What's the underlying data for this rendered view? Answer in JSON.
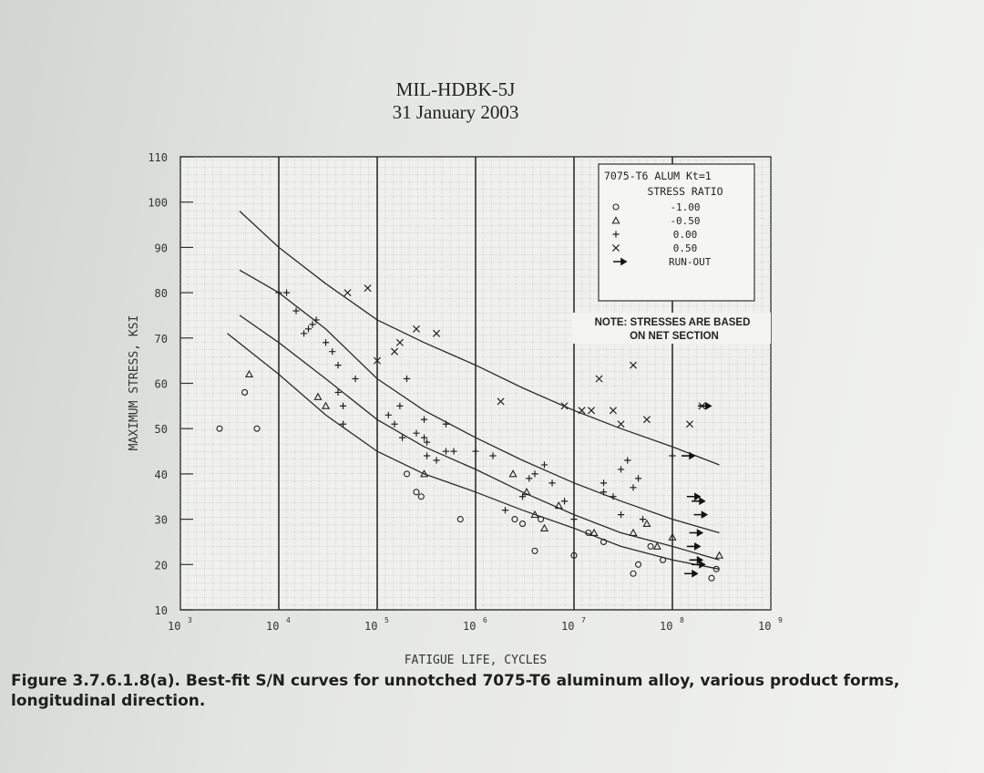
{
  "header": {
    "line1": "MIL-HDBK-5J",
    "line2": "31 January 2003"
  },
  "caption": {
    "text": "Figure 3.7.6.1.8(a). Best-fit S/N curves for unnotched 7075-T6 aluminum alloy, various product forms, longitudinal direction."
  },
  "chart_data": {
    "type": "scatter",
    "title": "",
    "xlabel": "FATIGUE LIFE, CYCLES",
    "ylabel": "MAXIMUM STRESS, KSI",
    "x_scale": "log",
    "xlim": [
      1000,
      1000000000
    ],
    "ylim": [
      10,
      110
    ],
    "x_ticks": [
      {
        "value": 1000,
        "base": "10",
        "exp": "3"
      },
      {
        "value": 10000,
        "base": "10",
        "exp": "4"
      },
      {
        "value": 100000,
        "base": "10",
        "exp": "5"
      },
      {
        "value": 1000000,
        "base": "10",
        "exp": "6"
      },
      {
        "value": 10000000,
        "base": "10",
        "exp": "7"
      },
      {
        "value": 100000000,
        "base": "10",
        "exp": "8"
      },
      {
        "value": 1000000000,
        "base": "10",
        "exp": "9"
      }
    ],
    "y_ticks": [
      {
        "value": 10,
        "label": "10"
      },
      {
        "value": 20,
        "label": "20"
      },
      {
        "value": 30,
        "label": "30"
      },
      {
        "value": 40,
        "label": "40"
      },
      {
        "value": 50,
        "label": "50"
      },
      {
        "value": 60,
        "label": "60"
      },
      {
        "value": 70,
        "label": "70"
      },
      {
        "value": 80,
        "label": "80"
      },
      {
        "value": 90,
        "label": "90"
      },
      {
        "value": 100,
        "label": "100"
      },
      {
        "value": 110,
        "label": "110"
      }
    ],
    "grid": true,
    "legend": {
      "placement": "top-right",
      "title_line1": "7075-T6 ALUM Kt=1",
      "title_line2": "STRESS RATIO",
      "entries": [
        {
          "marker": "circle",
          "label": "-1.00"
        },
        {
          "marker": "triangle",
          "label": "-0.50"
        },
        {
          "marker": "plus",
          "label": "0.00"
        },
        {
          "marker": "x",
          "label": "0.50"
        },
        {
          "marker": "arrow",
          "label": "RUN-OUT"
        }
      ]
    },
    "note": {
      "line1": "NOTE: STRESSES ARE BASED",
      "line2": "ON NET SECTION"
    },
    "curves": [
      {
        "name": "0.50",
        "x": [
          4000,
          10000,
          30000,
          100000,
          300000,
          1000000,
          3000000,
          10000000,
          30000000,
          100000000,
          300000000
        ],
        "y": [
          98,
          90,
          82,
          74,
          69,
          64,
          59,
          54,
          50,
          46,
          42
        ]
      },
      {
        "name": "0.00",
        "x": [
          4000,
          10000,
          30000,
          100000,
          300000,
          1000000,
          3000000,
          10000000,
          30000000,
          100000000,
          300000000
        ],
        "y": [
          85,
          80,
          72,
          61,
          54,
          48,
          43,
          38,
          34,
          30,
          27
        ]
      },
      {
        "name": "-0.50",
        "x": [
          4000,
          10000,
          30000,
          100000,
          300000,
          1000000,
          3000000,
          10000000,
          30000000,
          100000000,
          300000000
        ],
        "y": [
          75,
          69,
          61,
          52,
          46,
          41,
          36,
          31,
          27,
          24,
          21
        ]
      },
      {
        "name": "-1.00",
        "x": [
          3000,
          10000,
          30000,
          100000,
          300000,
          1000000,
          3000000,
          10000000,
          30000000,
          100000000,
          300000000
        ],
        "y": [
          71,
          62,
          53,
          45,
          40,
          36,
          32,
          28,
          24,
          21,
          19
        ]
      }
    ],
    "series": [
      {
        "name": "-1.00",
        "marker": "circle",
        "points": [
          [
            2500,
            50
          ],
          [
            4500,
            58
          ],
          [
            6000,
            50
          ],
          [
            200000,
            40
          ],
          [
            250000,
            36
          ],
          [
            280000,
            35
          ],
          [
            700000,
            30
          ],
          [
            2500000,
            30
          ],
          [
            3000000,
            29
          ],
          [
            4000000,
            23
          ],
          [
            4600000,
            30
          ],
          [
            10000000,
            22
          ],
          [
            14000000,
            27
          ],
          [
            20000000,
            25
          ],
          [
            40000000,
            18
          ],
          [
            45000000,
            20
          ],
          [
            60000000,
            24
          ],
          [
            80000000,
            21
          ],
          [
            250000000,
            17
          ],
          [
            280000000,
            19
          ]
        ]
      },
      {
        "name": "-0.50",
        "marker": "triangle",
        "points": [
          [
            5000,
            62
          ],
          [
            25000,
            57
          ],
          [
            30000,
            55
          ],
          [
            300000,
            40
          ],
          [
            2400000,
            40
          ],
          [
            3300000,
            36
          ],
          [
            4000000,
            31
          ],
          [
            5000000,
            28
          ],
          [
            7000000,
            33
          ],
          [
            16000000,
            27
          ],
          [
            40000000,
            27
          ],
          [
            55000000,
            29
          ],
          [
            70000000,
            24
          ],
          [
            100000000,
            26
          ],
          [
            300000000,
            22
          ]
        ]
      },
      {
        "name": "0.00",
        "marker": "plus",
        "points": [
          [
            10000,
            80
          ],
          [
            12000,
            80
          ],
          [
            15000,
            76
          ],
          [
            18000,
            71
          ],
          [
            20000,
            72
          ],
          [
            22000,
            73
          ],
          [
            24000,
            74
          ],
          [
            30000,
            69
          ],
          [
            35000,
            67
          ],
          [
            40000,
            64
          ],
          [
            40000,
            58
          ],
          [
            45000,
            55
          ],
          [
            45000,
            51
          ],
          [
            60000,
            61
          ],
          [
            130000,
            53
          ],
          [
            150000,
            51
          ],
          [
            170000,
            55
          ],
          [
            180000,
            48
          ],
          [
            200000,
            61
          ],
          [
            250000,
            49
          ],
          [
            300000,
            48
          ],
          [
            300000,
            52
          ],
          [
            320000,
            47
          ],
          [
            320000,
            44
          ],
          [
            400000,
            43
          ],
          [
            500000,
            45
          ],
          [
            500000,
            51
          ],
          [
            600000,
            45
          ],
          [
            1000000,
            45
          ],
          [
            1500000,
            44
          ],
          [
            2000000,
            32
          ],
          [
            3000000,
            35
          ],
          [
            3500000,
            39
          ],
          [
            4000000,
            40
          ],
          [
            5000000,
            42
          ],
          [
            6000000,
            38
          ],
          [
            8000000,
            34
          ],
          [
            10000000,
            30
          ],
          [
            20000000,
            38
          ],
          [
            20000000,
            36
          ],
          [
            25000000,
            35
          ],
          [
            30000000,
            31
          ],
          [
            30000000,
            41
          ],
          [
            35000000,
            43
          ],
          [
            40000000,
            37
          ],
          [
            45000000,
            39
          ],
          [
            50000000,
            30
          ],
          [
            100000000,
            44
          ]
        ]
      },
      {
        "name": "0.50",
        "marker": "x",
        "points": [
          [
            50000,
            80
          ],
          [
            80000,
            81
          ],
          [
            100000,
            65
          ],
          [
            150000,
            67
          ],
          [
            170000,
            69
          ],
          [
            250000,
            72
          ],
          [
            400000,
            71
          ],
          [
            1800000,
            56
          ],
          [
            8000000,
            55
          ],
          [
            12000000,
            54
          ],
          [
            15000000,
            54
          ],
          [
            18000000,
            61
          ],
          [
            25000000,
            54
          ],
          [
            30000000,
            51
          ],
          [
            40000000,
            64
          ],
          [
            55000000,
            52
          ],
          [
            150000000,
            51
          ],
          [
            200000000,
            55
          ]
        ]
      },
      {
        "name": "RUN-OUT",
        "marker": "arrow",
        "points": [
          [
            150000000,
            44
          ],
          [
            170000000,
            35
          ],
          [
            190000000,
            34
          ],
          [
            200000000,
            31
          ],
          [
            180000000,
            27
          ],
          [
            170000000,
            24
          ],
          [
            180000000,
            21
          ],
          [
            190000000,
            20
          ],
          [
            160000000,
            18
          ],
          [
            220000000,
            55
          ]
        ]
      }
    ]
  }
}
